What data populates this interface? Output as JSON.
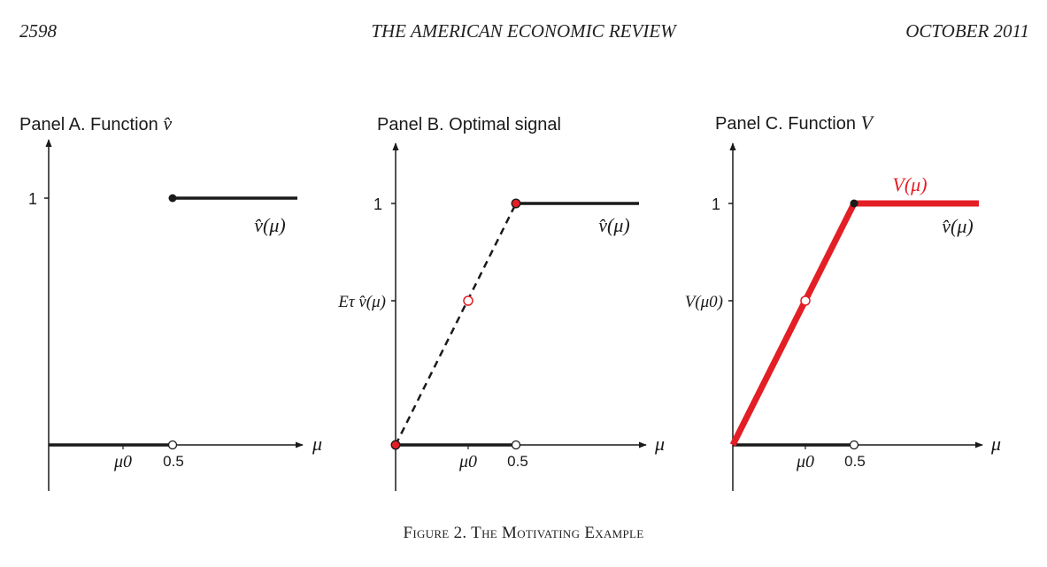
{
  "header": {
    "page_number": "2598",
    "journal": "THE AMERICAN ECONOMIC REVIEW",
    "date": "OCTOBER 2011"
  },
  "panels": [
    {
      "title_text": "Panel A. Function ",
      "title_symbol": "v̂",
      "y_tick": "1",
      "curve_label": "v̂(μ)",
      "x_axis_label": "μ",
      "x_ticks": [
        "μ0",
        "0.5"
      ]
    },
    {
      "title_text": "Panel B. Optimal signal",
      "y_tick": "1",
      "y_mid_label": "Eτ v̂(μ)",
      "curve_label": "v̂(μ)",
      "x_axis_label": "μ",
      "x_ticks": [
        "μ0",
        "0.5"
      ]
    },
    {
      "title_text": "Panel C. Function ",
      "title_symbol": "V",
      "y_tick": "1",
      "y_mid_label": "V(μ0)",
      "concav_label": "V(μ)",
      "curve_label": "v̂(μ)",
      "x_axis_label": "μ",
      "x_ticks": [
        "μ0",
        "0.5"
      ]
    }
  ],
  "caption": "Figure 2. The Motivating Example",
  "colors": {
    "ink": "#1a1a1a",
    "red": "#e41e25"
  }
}
